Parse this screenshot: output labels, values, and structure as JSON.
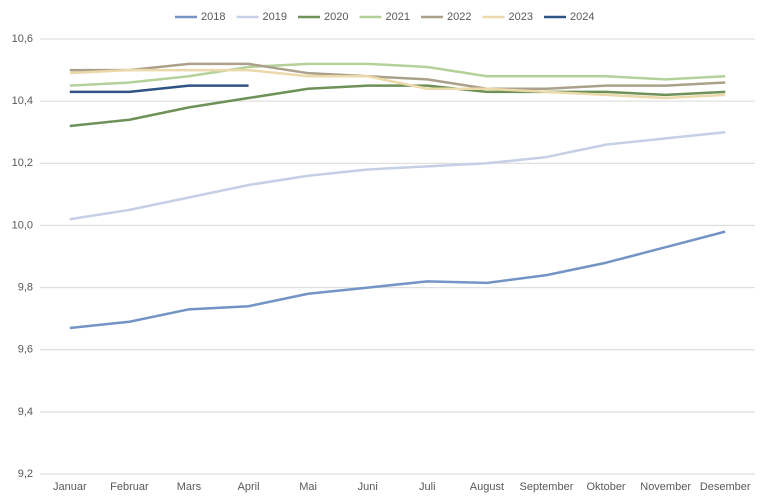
{
  "chart_data": {
    "type": "line",
    "categories": [
      "Januar",
      "Februar",
      "Mars",
      "April",
      "Mai",
      "Juni",
      "Juli",
      "August",
      "September",
      "Oktober",
      "November",
      "Desember"
    ],
    "series": [
      {
        "name": "2018",
        "color": "#7394c5",
        "values": [
          9.67,
          9.69,
          9.73,
          9.74,
          9.78,
          9.8,
          9.82,
          9.815,
          9.84,
          9.88,
          9.93,
          9.98
        ]
      },
      {
        "name": "2019",
        "color": "#c5cfe5",
        "values": [
          10.02,
          10.05,
          10.09,
          10.13,
          10.16,
          10.18,
          10.19,
          10.2,
          10.22,
          10.26,
          10.28,
          10.3
        ]
      },
      {
        "name": "2020",
        "color": "#6e9158",
        "values": [
          10.32,
          10.34,
          10.38,
          10.41,
          10.44,
          10.45,
          10.45,
          10.43,
          10.43,
          10.43,
          10.42,
          10.43
        ]
      },
      {
        "name": "2021",
        "color": "#b4d19a",
        "values": [
          10.45,
          10.46,
          10.48,
          10.51,
          10.52,
          10.52,
          10.51,
          10.48,
          10.48,
          10.48,
          10.47,
          10.48
        ]
      },
      {
        "name": "2022",
        "color": "#aba08a",
        "values": [
          10.5,
          10.5,
          10.52,
          10.52,
          10.49,
          10.48,
          10.47,
          10.44,
          10.44,
          10.45,
          10.45,
          10.46
        ]
      },
      {
        "name": "2023",
        "color": "#ecd9a9",
        "values": [
          10.49,
          10.5,
          10.5,
          10.5,
          10.48,
          10.48,
          10.44,
          10.44,
          10.43,
          10.42,
          10.41,
          10.42
        ]
      },
      {
        "name": "2024",
        "color": "#2e5484",
        "values": [
          10.43,
          10.43,
          10.45,
          10.45,
          null,
          null,
          null,
          null,
          null,
          null,
          null,
          null
        ]
      }
    ],
    "ylim": [
      9.2,
      10.6
    ],
    "yticks": [
      {
        "value": 9.2,
        "label": "9,2"
      },
      {
        "value": 9.4,
        "label": "9,4"
      },
      {
        "value": 9.6,
        "label": "9,6"
      },
      {
        "value": 9.8,
        "label": "9,8"
      },
      {
        "value": 10.0,
        "label": "10,0"
      },
      {
        "value": 10.2,
        "label": "10,2"
      },
      {
        "value": 10.4,
        "label": "10,4"
      },
      {
        "value": 10.6,
        "label": "10,6"
      }
    ],
    "grid": true,
    "legend": "top"
  }
}
